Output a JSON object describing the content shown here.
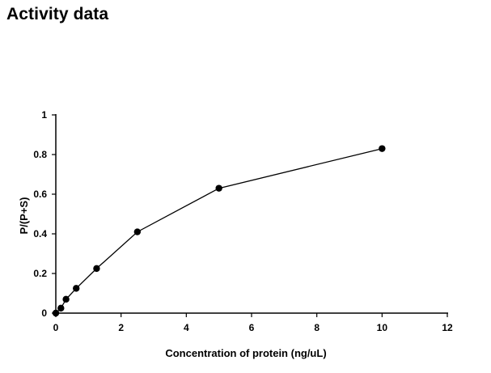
{
  "page": {
    "title": "Activity data"
  },
  "chart_data": {
    "type": "line",
    "title": "",
    "xlabel": "Concentration of protein (ng/uL)",
    "ylabel": "P/(P+S)",
    "xlim": [
      0,
      12
    ],
    "ylim": [
      0,
      1
    ],
    "xticks": [
      0,
      2,
      4,
      6,
      8,
      10,
      12
    ],
    "yticks": [
      0,
      0.2,
      0.4,
      0.6,
      0.8,
      1
    ],
    "xtick_labels": [
      "0",
      "2",
      "4",
      "6",
      "8",
      "10",
      "12"
    ],
    "ytick_labels": [
      "0",
      "0.2",
      "0.4",
      "0.6",
      "0.8",
      "1"
    ],
    "grid": false,
    "legend": "none",
    "marker": "circle",
    "line_color": "#000000",
    "marker_color": "#000000",
    "series": [
      {
        "x": [
          0,
          0.156,
          0.3125,
          0.625,
          1.25,
          2.5,
          5,
          10
        ],
        "y": [
          0,
          0.025,
          0.07,
          0.125,
          0.225,
          0.41,
          0.63,
          0.83
        ]
      }
    ]
  }
}
